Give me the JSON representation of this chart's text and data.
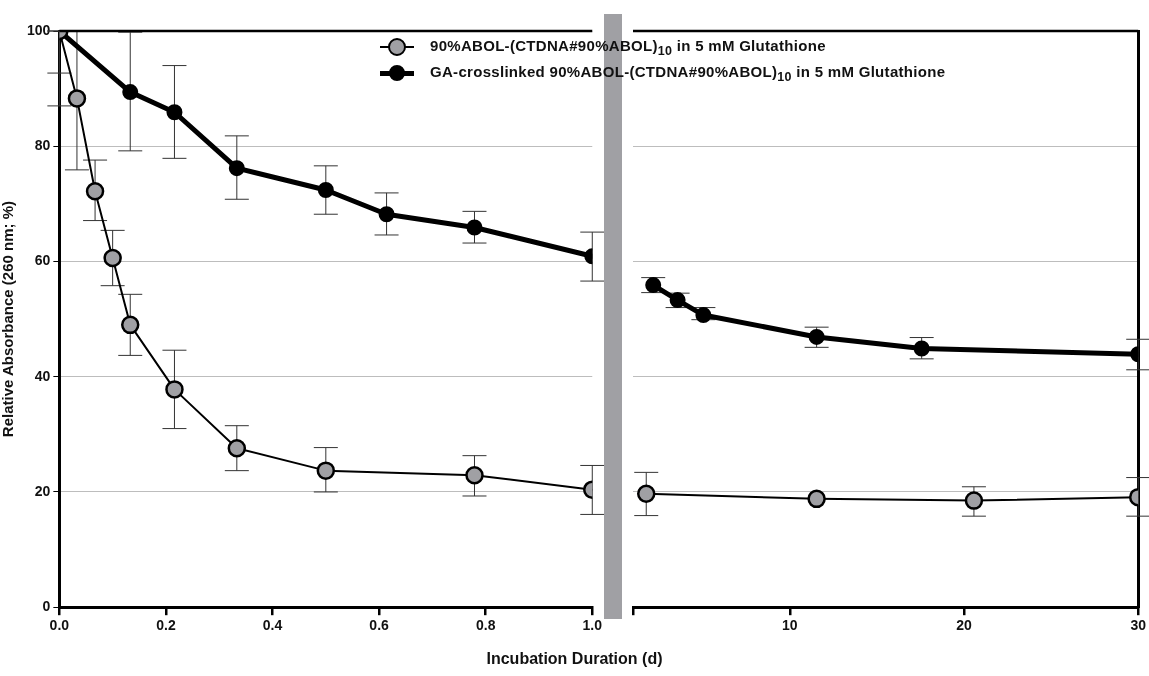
{
  "chart_data": [
    {
      "type": "line",
      "ylabel": "Relative Absorbance (260 nm; %)",
      "xlabel": "Incubation Duration (d)",
      "xlim": [
        0,
        1
      ],
      "xticks": [
        {
          "value": 0,
          "label": "0.0"
        },
        {
          "value": 0.2,
          "label": "0.2"
        },
        {
          "value": 0.4,
          "label": "0.4"
        },
        {
          "value": 0.6,
          "label": "0.6"
        },
        {
          "value": 0.8,
          "label": "0.8"
        },
        {
          "value": 1,
          "label": "1.0"
        }
      ],
      "ylim": [
        0,
        100
      ],
      "yticks": [
        0,
        20,
        40,
        60,
        80,
        100
      ],
      "grid": "y",
      "legend": "top right",
      "marker": "circle",
      "line_style": "solid",
      "series": [
        {
          "name": "90%ABOL-(CTDNA#90%ABOL)$_{10}$ in 5 mM Glutathione",
          "color": "#a0a0a4",
          "x": [
            0,
            0.033,
            0.067,
            0.1,
            0.133,
            0.216,
            0.333,
            0.5,
            0.779,
            1.0
          ],
          "values": [
            100,
            88.3,
            72.2,
            60.6,
            49.0,
            37.8,
            27.6,
            23.7,
            22.9,
            20.4
          ],
          "errors": [
            [
              87,
              100
            ],
            [
              75.9,
              100
            ],
            [
              67.1,
              77.6
            ],
            [
              55.8,
              65.4
            ],
            [
              43.7,
              54.3
            ],
            [
              31.0,
              44.6
            ],
            [
              23.7,
              31.5
            ],
            [
              20.0,
              27.7
            ],
            [
              19.3,
              26.3
            ],
            [
              16.1,
              24.6
            ]
          ]
        },
        {
          "name": "GA-crosslinked 90%ABOL-(CTDNA#90%ABOL)$_{10}$ in 5 mM Glutathione",
          "color": "#000000",
          "x": [
            0,
            0.133,
            0.216,
            0.333,
            0.5,
            0.614,
            0.779,
            1.0
          ],
          "values": [
            100,
            89.4,
            85.9,
            76.2,
            72.4,
            68.2,
            65.9,
            60.9
          ],
          "errors": [
            [
              92.7,
              100
            ],
            [
              79.2,
              99.8
            ],
            [
              77.9,
              94.0
            ],
            [
              70.8,
              81.8
            ],
            [
              68.2,
              76.6
            ],
            [
              64.6,
              71.9
            ],
            [
              63.2,
              68.7
            ],
            [
              56.6,
              65.1
            ]
          ]
        }
      ]
    },
    {
      "type": "line",
      "xlim": [
        1,
        30
      ],
      "xticks": [
        {
          "value": 1,
          "label": null
        },
        10,
        20,
        30
      ],
      "ylim": [
        0,
        100
      ],
      "yticks": [
        0,
        20,
        40,
        60,
        80,
        100
      ],
      "grid": "y",
      "tick_labels": "x",
      "marker": "circle",
      "line_style": "solid",
      "series": [
        {
          "color": "#a0a0a4",
          "x": [
            1.76,
            11.54,
            20.57,
            30
          ],
          "values": [
            19.7,
            18.8,
            18.5,
            19.1
          ],
          "errors": [
            [
              15.9,
              23.4
            ],
            null,
            [
              15.8,
              20.9
            ],
            [
              15.8,
              22.5
            ]
          ]
        },
        {
          "color": "#000000",
          "x": [
            2.16,
            3.56,
            5.04,
            11.54,
            17.57,
            30
          ],
          "values": [
            55.9,
            53.3,
            50.7,
            46.9,
            44.9,
            43.9
          ],
          "errors": [
            [
              54.6,
              57.2
            ],
            [
              52.0,
              54.5
            ],
            [
              49.9,
              52.0
            ],
            [
              45.1,
              48.6
            ],
            [
              43.1,
              46.8
            ],
            [
              41.2,
              46.5
            ]
          ]
        }
      ]
    }
  ]
}
